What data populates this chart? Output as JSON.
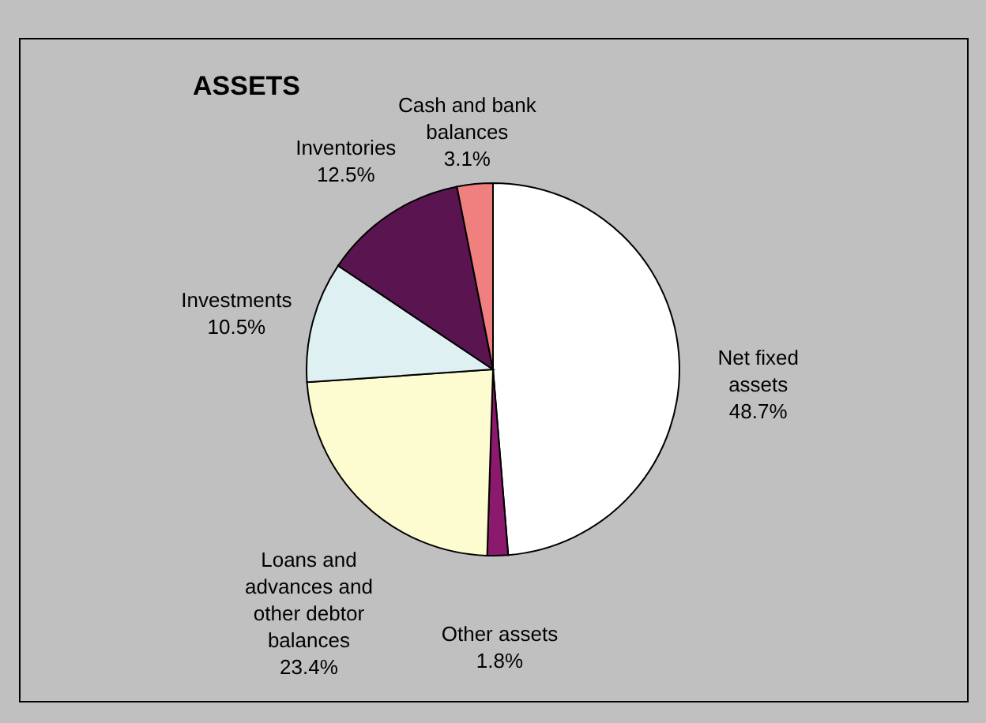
{
  "chart_data": {
    "type": "pie",
    "title": "ASSETS",
    "categories": [
      "Net fixed assets",
      "Other assets",
      "Loans and advances and other debtor balances",
      "Investments",
      "Inventories",
      "Cash and bank balances"
    ],
    "values": [
      48.7,
      1.8,
      23.4,
      10.5,
      12.5,
      3.1
    ],
    "value_labels": [
      "48.7%",
      "1.8%",
      "23.4%",
      "10.5%",
      "12.5%",
      "3.1%"
    ],
    "colors": [
      "#ffffff",
      "#8b1a6e",
      "#fdfbd0",
      "#def0f2",
      "#5a1450",
      "#f08080"
    ],
    "legend": false
  }
}
